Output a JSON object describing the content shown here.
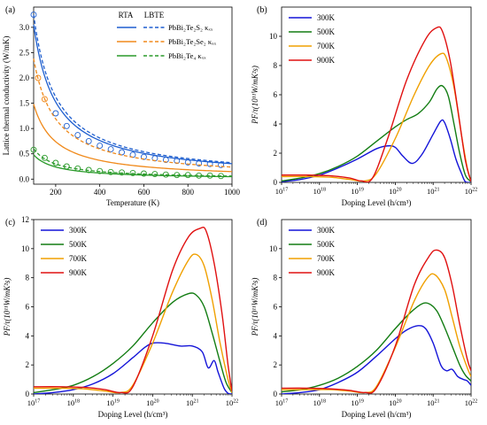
{
  "chart_data": [
    {
      "panel": "(a)",
      "type": "line",
      "xlabel": "Temperature (K)",
      "ylabel": "Lattice thermal conductivity (W/mK)",
      "xlim": [
        100,
        1000
      ],
      "ylim": [
        -0.1,
        3.4
      ],
      "xticks": [
        200,
        400,
        600,
        800,
        1000
      ],
      "yticks": [
        0.0,
        0.5,
        1.0,
        1.5,
        2.0,
        2.5,
        3.0
      ],
      "ytick_labels": [
        "0.0",
        "0.5",
        "1.0",
        "1.5",
        "2.0",
        "2.5",
        "3.0"
      ],
      "legend": {
        "placement": "top-right",
        "header_solid": "RTA",
        "header_dashed": "LBTE",
        "entries": [
          "PbBi₂Te₂S₂ κₓₓ",
          "PbBi₂Te₂Se₂ κₓₓ",
          "PbBi₂Te₄ κₓₓ"
        ]
      },
      "series": [
        {
          "name": "PbBi₂Te₂S₂ κₓₓ",
          "color": "#1f5fcf",
          "rta_k100": 3.05,
          "lbte_k100": 3.25,
          "markers_x": [
            100,
            200,
            250,
            300,
            350,
            400,
            450,
            500,
            550,
            600,
            650,
            700,
            750,
            800,
            850,
            900,
            950
          ],
          "markers_y": [
            3.25,
            1.3,
            1.05,
            0.87,
            0.75,
            0.66,
            0.59,
            0.53,
            0.48,
            0.44,
            0.41,
            0.38,
            0.36,
            0.33,
            0.31,
            0.3,
            0.28
          ]
        },
        {
          "name": "PbBi₂Te₂Se₂ κₓₓ",
          "color": "#f08a1c",
          "rta_k100": 1.48,
          "lbte_k100": 2.38,
          "markers_x": [
            120,
            150
          ],
          "markers_y": [
            2.0,
            1.58
          ]
        },
        {
          "name": "PbBi₂Te₄ κₓₓ",
          "color": "#2a9a2a",
          "rta_k100": 0.48,
          "lbte_k100": 0.6,
          "markers_x": [
            100,
            150,
            200,
            250,
            300,
            350,
            400,
            450,
            500,
            550,
            600,
            650,
            700,
            750,
            800,
            850,
            900,
            950
          ],
          "markers_y": [
            0.58,
            0.42,
            0.32,
            0.25,
            0.21,
            0.18,
            0.16,
            0.14,
            0.13,
            0.12,
            0.11,
            0.1,
            0.09,
            0.08,
            0.08,
            0.07,
            0.07,
            0.06
          ]
        }
      ]
    },
    {
      "panel": "(b)",
      "type": "line",
      "xscale": "log",
      "xlabel": "Doping Level (h/cm³)",
      "ylabel": "PF/τ(10¹¹W/mK²s)",
      "xlim_exp": [
        17,
        22
      ],
      "ylim": [
        0,
        12
      ],
      "yticks": [
        0,
        2,
        4,
        6,
        8,
        10
      ],
      "legend": {
        "placement": "top-left"
      },
      "series": [
        {
          "name": "300K",
          "color": "#1414d8",
          "x_exp": [
            17,
            17.5,
            18,
            18.5,
            19,
            19.5,
            19.8,
            20,
            20.2,
            20.45,
            20.7,
            21,
            21.2,
            21.3,
            21.45,
            21.6,
            21.75,
            21.85,
            22
          ],
          "values": [
            0.05,
            0.2,
            0.5,
            1.0,
            1.6,
            2.3,
            2.5,
            2.4,
            1.8,
            1.3,
            1.9,
            3.3,
            4.2,
            4.1,
            3.0,
            1.6,
            0.6,
            0.05,
            0
          ]
        },
        {
          "name": "500K",
          "color": "#137d13",
          "x_exp": [
            17,
            17.5,
            18,
            18.5,
            19,
            19.5,
            20,
            20.3,
            20.6,
            20.9,
            21.1,
            21.25,
            21.4,
            21.55,
            21.7,
            21.85,
            22
          ],
          "values": [
            0.1,
            0.3,
            0.6,
            1.1,
            1.8,
            2.8,
            3.8,
            4.3,
            4.7,
            5.5,
            6.4,
            6.6,
            5.9,
            4.0,
            2.0,
            0.5,
            0.05
          ]
        },
        {
          "name": "700K",
          "color": "#f0a000",
          "x_exp": [
            17,
            17.7,
            18.3,
            18.8,
            19.2,
            19.5,
            20,
            20.5,
            20.9,
            21.2,
            21.35,
            21.55,
            21.75,
            21.9,
            22
          ],
          "values": [
            0.4,
            0.4,
            0.35,
            0.2,
            0.1,
            0.6,
            3.0,
            6.0,
            8.0,
            8.8,
            8.5,
            6.5,
            3.2,
            1.0,
            0.05
          ]
        },
        {
          "name": "900K",
          "color": "#e01010",
          "x_exp": [
            17,
            17.7,
            18.3,
            18.8,
            19.1,
            19.4,
            19.8,
            20.3,
            20.8,
            21.1,
            21.25,
            21.45,
            21.65,
            21.85,
            22
          ],
          "values": [
            0.5,
            0.5,
            0.45,
            0.3,
            0.1,
            0.3,
            3.0,
            7.0,
            9.8,
            10.6,
            10.3,
            8.3,
            5.0,
            1.5,
            0.05
          ]
        }
      ]
    },
    {
      "panel": "(c)",
      "type": "line",
      "xscale": "log",
      "xlabel": "Doping Level (h/cm³)",
      "ylabel": "PF/τ(10¹¹W/mK²s)",
      "xlim_exp": [
        17,
        22
      ],
      "ylim": [
        0,
        12
      ],
      "yticks": [
        0,
        2,
        4,
        6,
        8,
        10,
        12
      ],
      "legend": {
        "placement": "top-left"
      },
      "series": [
        {
          "name": "300K",
          "color": "#1414d8",
          "x_exp": [
            17,
            17.5,
            18,
            18.5,
            19,
            19.5,
            19.8,
            20,
            20.3,
            20.7,
            21,
            21.25,
            21.4,
            21.55,
            21.65,
            21.8,
            21.9,
            22
          ],
          "values": [
            0.0,
            0.1,
            0.3,
            0.7,
            1.4,
            2.5,
            3.2,
            3.5,
            3.5,
            3.3,
            3.3,
            2.9,
            1.8,
            2.3,
            1.5,
            0.4,
            0.05,
            0
          ]
        },
        {
          "name": "500K",
          "color": "#137d13",
          "x_exp": [
            17,
            17.5,
            18,
            18.5,
            19,
            19.5,
            20,
            20.5,
            20.9,
            21.1,
            21.3,
            21.5,
            21.7,
            21.85,
            22
          ],
          "values": [
            0.1,
            0.3,
            0.6,
            1.2,
            2.1,
            3.3,
            4.9,
            6.3,
            6.9,
            6.8,
            6.0,
            4.2,
            2.2,
            0.8,
            0.1
          ]
        },
        {
          "name": "700K",
          "color": "#f0a000",
          "x_exp": [
            17,
            17.7,
            18.3,
            18.8,
            19.2,
            19.5,
            20,
            20.5,
            20.9,
            21.1,
            21.3,
            21.5,
            21.7,
            21.9,
            22
          ],
          "values": [
            0.4,
            0.4,
            0.35,
            0.2,
            0.1,
            0.6,
            3.5,
            7.0,
            9.2,
            9.6,
            8.8,
            6.5,
            3.5,
            1.0,
            0.1
          ]
        },
        {
          "name": "900K",
          "color": "#e01010",
          "x_exp": [
            17,
            17.7,
            18.3,
            18.8,
            19.2,
            19.5,
            20,
            20.5,
            20.9,
            21.2,
            21.35,
            21.55,
            21.75,
            21.9,
            22
          ],
          "values": [
            0.5,
            0.5,
            0.45,
            0.3,
            0.1,
            0.5,
            4.0,
            8.5,
            10.8,
            11.4,
            11.2,
            9.0,
            5.5,
            2.0,
            0.2
          ]
        }
      ]
    },
    {
      "panel": "(d)",
      "type": "line",
      "xscale": "log",
      "xlabel": "Doping Level (h/cm³)",
      "ylabel": "PF/τ(10¹¹W/mK²s)",
      "xlim_exp": [
        17,
        22
      ],
      "ylim": [
        0,
        12
      ],
      "yticks": [
        0,
        2,
        4,
        6,
        8,
        10
      ],
      "legend": {
        "placement": "top-left"
      },
      "series": [
        {
          "name": "300K",
          "color": "#1414d8",
          "x_exp": [
            17,
            17.5,
            18,
            18.5,
            19,
            19.5,
            20,
            20.3,
            20.6,
            20.8,
            21,
            21.2,
            21.35,
            21.5,
            21.65,
            21.8,
            21.9,
            22
          ],
          "values": [
            0.0,
            0.1,
            0.3,
            0.8,
            1.5,
            2.6,
            3.8,
            4.4,
            4.7,
            4.5,
            3.5,
            2.0,
            1.6,
            1.7,
            1.2,
            1.0,
            0.9,
            0.6
          ]
        },
        {
          "name": "500K",
          "color": "#137d13",
          "x_exp": [
            17,
            17.5,
            18,
            18.5,
            19,
            19.5,
            20,
            20.4,
            20.7,
            20.9,
            21.1,
            21.3,
            21.5,
            21.7,
            21.85,
            22
          ],
          "values": [
            0.15,
            0.3,
            0.6,
            1.1,
            1.9,
            3.0,
            4.5,
            5.6,
            6.2,
            6.2,
            5.7,
            4.6,
            3.3,
            2.0,
            1.3,
            0.9
          ]
        },
        {
          "name": "700K",
          "color": "#f0a000",
          "x_exp": [
            17,
            17.7,
            18.3,
            18.8,
            19.2,
            19.5,
            20,
            20.5,
            20.85,
            21.05,
            21.3,
            21.5,
            21.7,
            21.9,
            22
          ],
          "values": [
            0.3,
            0.3,
            0.3,
            0.2,
            0.1,
            0.5,
            3.2,
            6.4,
            8.0,
            8.2,
            7.2,
            5.3,
            3.3,
            1.8,
            1.2
          ]
        },
        {
          "name": "900K",
          "color": "#e01010",
          "x_exp": [
            17,
            17.7,
            18.3,
            18.8,
            19.2,
            19.5,
            20,
            20.5,
            20.9,
            21.1,
            21.3,
            21.5,
            21.7,
            21.9,
            22
          ],
          "values": [
            0.4,
            0.4,
            0.35,
            0.25,
            0.1,
            0.4,
            3.3,
            7.5,
            9.5,
            9.9,
            9.4,
            7.5,
            4.8,
            2.4,
            1.6
          ]
        }
      ]
    }
  ]
}
